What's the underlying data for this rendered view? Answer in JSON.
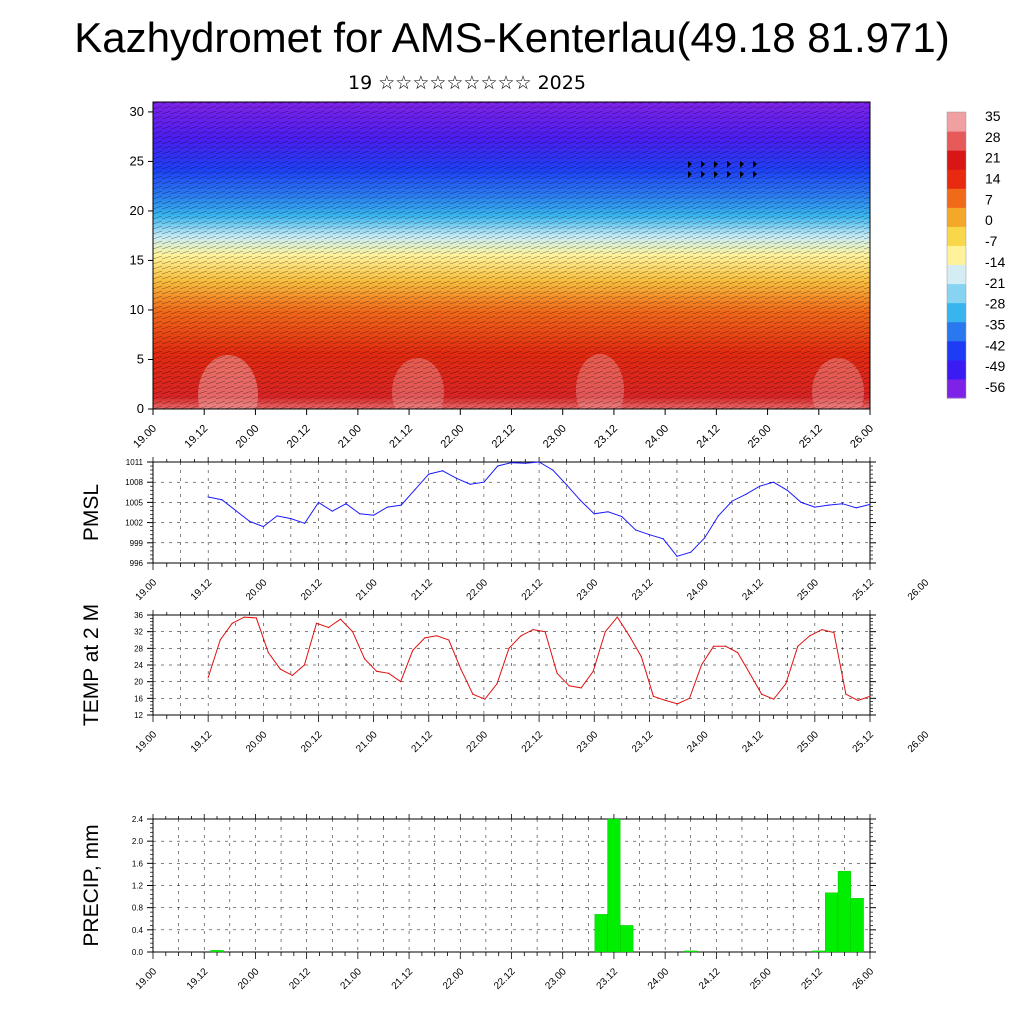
{
  "title": "Kazhydromet for AMS-Kenterlau(49.18 81.971)",
  "subtitle": "19 ☆☆☆☆☆☆☆☆☆ 2025",
  "x_tick_labels": [
    "19.00",
    "19.12",
    "20.00",
    "20.12",
    "21.00",
    "21.12",
    "22.00",
    "22.12",
    "23.00",
    "23.12",
    "24.00",
    "24.12",
    "25.00",
    "25.12",
    "26.00"
  ],
  "colors": {
    "pmsl_line": "#1a1aff",
    "temp_line": "#e01010",
    "precip_bar": "#00ee00",
    "colorbar_stops": [
      "#7f22e8",
      "#3a1cf2",
      "#1e3cf5",
      "#2a78f0",
      "#38b4ee",
      "#86d4f2",
      "#d4ecf4",
      "#fff29a",
      "#f8d84a",
      "#f4a82a",
      "#f06a1a",
      "#e82a10",
      "#d81616",
      "#e65a5a",
      "#f0a0a0"
    ]
  },
  "chart_data": [
    {
      "type": "heatmap",
      "name": "height-time section",
      "ytick_labels": [
        "0",
        "5",
        "10",
        "15",
        "20",
        "25",
        "30"
      ],
      "ylim": [
        0,
        31
      ],
      "xlim": [
        0,
        168
      ],
      "colorbar": {
        "labels": [
          "35",
          "28",
          "21",
          "14",
          "7",
          "0",
          "-7",
          "-14",
          "-21",
          "-28",
          "-35",
          "-42",
          "-49",
          "-56"
        ]
      }
    },
    {
      "type": "line",
      "ylabel": "PMSL",
      "ylim": [
        996,
        1011
      ],
      "ytick_labels": [
        "996",
        "999",
        "1002",
        "1005",
        "1008",
        "1011"
      ],
      "x_hours": [
        0,
        3,
        6,
        9,
        12,
        15,
        18,
        21,
        24,
        27,
        30,
        33,
        36,
        39,
        42,
        45,
        48,
        51,
        54,
        57,
        60,
        63,
        66,
        69,
        72,
        75,
        78,
        81,
        84,
        87,
        90,
        93,
        96,
        99,
        102,
        105,
        108,
        111,
        114,
        117,
        120,
        123,
        126,
        129,
        132,
        135,
        138,
        141,
        144
      ],
      "values": [
        1005.8,
        1005.4,
        1003.8,
        1002.2,
        1001.4,
        1003.0,
        1002.6,
        1001.9,
        1005.0,
        1003.7,
        1004.8,
        1003.3,
        1003.1,
        1004.3,
        1004.6,
        1006.9,
        1009.2,
        1009.7,
        1008.6,
        1007.7,
        1008.0,
        1010.4,
        1010.9,
        1010.8,
        1011.0,
        1009.8,
        1007.6,
        1005.3,
        1003.3,
        1003.6,
        1002.9,
        1000.9,
        1000.2,
        999.6,
        997.0,
        997.6,
        999.7,
        1003.0,
        1005.2,
        1006.2,
        1007.4,
        1008.0,
        1006.8,
        1005.0,
        1004.3,
        1004.6,
        1004.8,
        1004.2,
        1004.7
      ]
    },
    {
      "type": "line",
      "ylabel": "TEMP at 2 M",
      "ylim": [
        12,
        36
      ],
      "ytick_labels": [
        "12",
        "16",
        "20",
        "24",
        "28",
        "32",
        "36"
      ],
      "x_hours": [
        0,
        3,
        6,
        9,
        12,
        15,
        18,
        21,
        24,
        27,
        30,
        33,
        36,
        39,
        42,
        45,
        48,
        51,
        54,
        57,
        60,
        63,
        66,
        69,
        72,
        75,
        78,
        81,
        84,
        87,
        90,
        93,
        96,
        99,
        102,
        105,
        108,
        111,
        114,
        117,
        120,
        123,
        126,
        129,
        132,
        135,
        138,
        141,
        144,
        147,
        150,
        153,
        156,
        159,
        162,
        165
      ],
      "values": [
        21,
        30,
        34,
        35.5,
        35.3,
        27,
        23,
        21.5,
        24,
        34,
        33,
        35,
        32,
        25.5,
        22.5,
        22,
        20,
        27.5,
        30.5,
        31,
        30,
        23,
        17,
        15.8,
        19.5,
        28,
        31,
        32.5,
        32,
        22,
        19,
        18.5,
        22.5,
        32,
        35.5,
        31,
        26,
        16.5,
        15.5,
        14.7,
        16,
        24,
        28.5,
        28.5,
        27,
        22,
        17,
        15.8,
        19.5,
        28.5,
        31,
        32.5,
        31.8,
        17,
        15.5,
        16.5
      ]
    },
    {
      "type": "bar",
      "ylabel": "PRECIP, mm",
      "ylim": [
        0,
        2.4
      ],
      "ytick_labels": [
        "0.0",
        "0.4",
        "0.8",
        "1.2",
        "1.6",
        "2.0",
        "2.4"
      ],
      "bars": [
        {
          "hour": 15,
          "value": 0.03
        },
        {
          "hour": 105,
          "value": 0.68
        },
        {
          "hour": 108,
          "value": 2.4
        },
        {
          "hour": 111,
          "value": 0.48
        },
        {
          "hour": 126,
          "value": 0.02
        },
        {
          "hour": 156,
          "value": 0.02
        },
        {
          "hour": 159,
          "value": 1.07
        },
        {
          "hour": 162,
          "value": 1.46
        },
        {
          "hour": 165,
          "value": 0.97
        }
      ]
    }
  ]
}
